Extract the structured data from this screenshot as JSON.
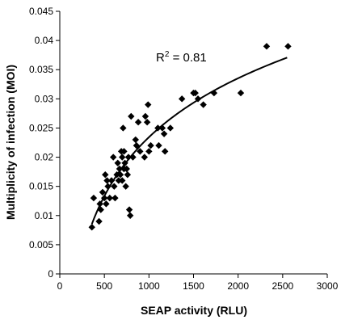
{
  "chart_data": {
    "type": "scatter",
    "xlabel": "SEAP activity (RLU)",
    "ylabel": "Multiplicity of infection (MOI)",
    "xlim": [
      0,
      3000
    ],
    "ylim": [
      0,
      0.045
    ],
    "x_ticks": [
      "0",
      "500",
      "1000",
      "1500",
      "2000",
      "2500",
      "3000"
    ],
    "y_ticks": [
      "0",
      "0.005",
      "0.01",
      "0.015",
      "0.02",
      "0.025",
      "0.03",
      "0.035",
      "0.04",
      "0.045"
    ],
    "annotation": {
      "base": "R",
      "sup": "2",
      "rest": " = 0.81"
    },
    "grid": false,
    "marker": "diamond",
    "points": [
      {
        "x": 360,
        "y": 0.008
      },
      {
        "x": 380,
        "y": 0.013
      },
      {
        "x": 440,
        "y": 0.009
      },
      {
        "x": 450,
        "y": 0.012
      },
      {
        "x": 460,
        "y": 0.011
      },
      {
        "x": 480,
        "y": 0.014
      },
      {
        "x": 500,
        "y": 0.013
      },
      {
        "x": 510,
        "y": 0.017
      },
      {
        "x": 520,
        "y": 0.012
      },
      {
        "x": 530,
        "y": 0.016
      },
      {
        "x": 540,
        "y": 0.015
      },
      {
        "x": 560,
        "y": 0.013
      },
      {
        "x": 580,
        "y": 0.016
      },
      {
        "x": 600,
        "y": 0.02
      },
      {
        "x": 610,
        "y": 0.015
      },
      {
        "x": 620,
        "y": 0.013
      },
      {
        "x": 640,
        "y": 0.017
      },
      {
        "x": 650,
        "y": 0.019
      },
      {
        "x": 660,
        "y": 0.016
      },
      {
        "x": 670,
        "y": 0.018
      },
      {
        "x": 680,
        "y": 0.017
      },
      {
        "x": 690,
        "y": 0.021
      },
      {
        "x": 700,
        "y": 0.016
      },
      {
        "x": 700,
        "y": 0.02
      },
      {
        "x": 710,
        "y": 0.025
      },
      {
        "x": 720,
        "y": 0.018
      },
      {
        "x": 720,
        "y": 0.021
      },
      {
        "x": 730,
        "y": 0.019
      },
      {
        "x": 740,
        "y": 0.015
      },
      {
        "x": 750,
        "y": 0.018
      },
      {
        "x": 760,
        "y": 0.017
      },
      {
        "x": 770,
        "y": 0.02
      },
      {
        "x": 780,
        "y": 0.011
      },
      {
        "x": 790,
        "y": 0.01
      },
      {
        "x": 800,
        "y": 0.027
      },
      {
        "x": 820,
        "y": 0.02
      },
      {
        "x": 850,
        "y": 0.023
      },
      {
        "x": 860,
        "y": 0.022
      },
      {
        "x": 880,
        "y": 0.026
      },
      {
        "x": 900,
        "y": 0.021
      },
      {
        "x": 950,
        "y": 0.02
      },
      {
        "x": 960,
        "y": 0.027
      },
      {
        "x": 980,
        "y": 0.026
      },
      {
        "x": 990,
        "y": 0.029
      },
      {
        "x": 1000,
        "y": 0.021
      },
      {
        "x": 1020,
        "y": 0.022
      },
      {
        "x": 1100,
        "y": 0.025
      },
      {
        "x": 1110,
        "y": 0.022
      },
      {
        "x": 1150,
        "y": 0.025
      },
      {
        "x": 1170,
        "y": 0.024
      },
      {
        "x": 1180,
        "y": 0.021
      },
      {
        "x": 1240,
        "y": 0.025
      },
      {
        "x": 1370,
        "y": 0.03
      },
      {
        "x": 1500,
        "y": 0.031
      },
      {
        "x": 1520,
        "y": 0.031
      },
      {
        "x": 1550,
        "y": 0.03
      },
      {
        "x": 1610,
        "y": 0.029
      },
      {
        "x": 1730,
        "y": 0.031
      },
      {
        "x": 2030,
        "y": 0.031
      },
      {
        "x": 2320,
        "y": 0.039
      },
      {
        "x": 2560,
        "y": 0.039
      }
    ],
    "trendline": {
      "type": "logarithmic",
      "x_range": [
        360,
        2550
      ],
      "r_squared": 0.81
    }
  }
}
